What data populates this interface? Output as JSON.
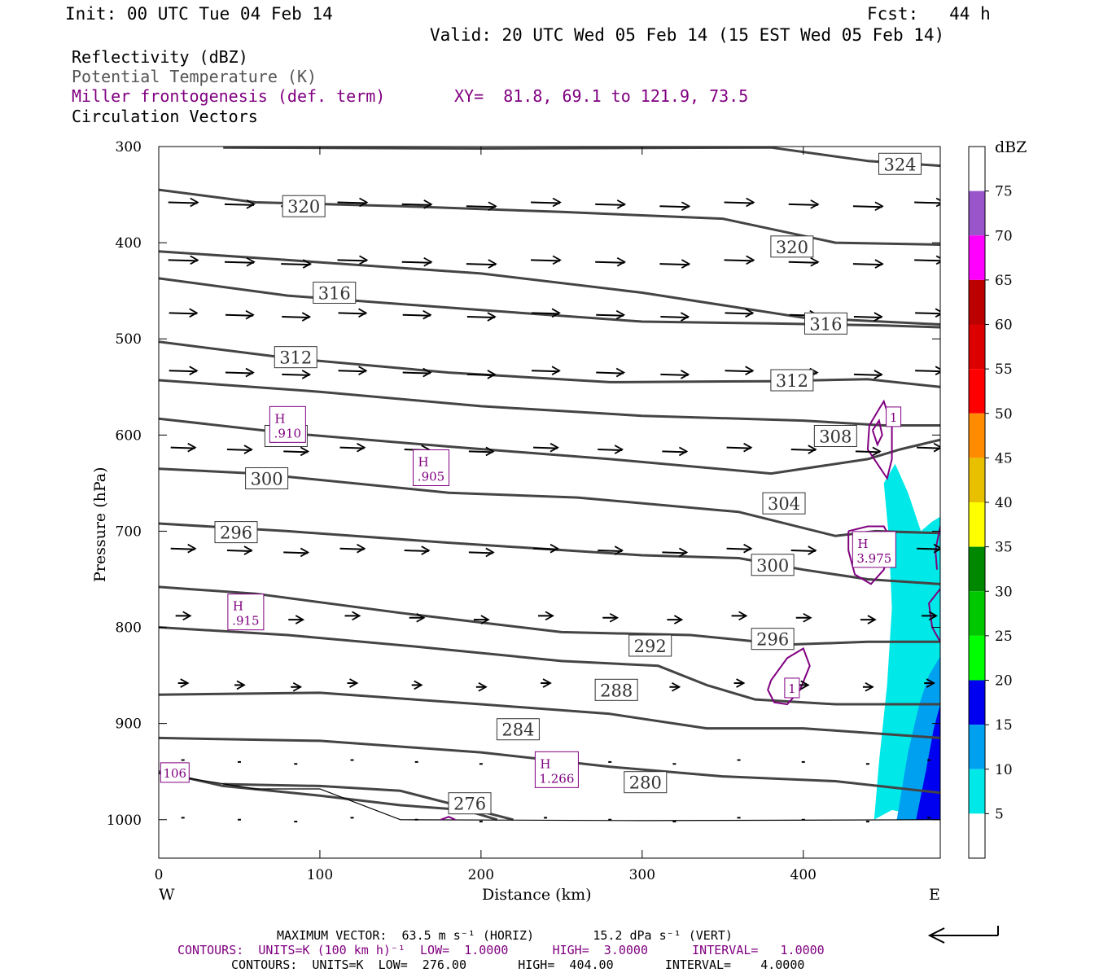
{
  "header": {
    "init": "Init: 00 UTC Tue 04 Feb 14",
    "fcst": "Fcst:   44 h",
    "valid": "Valid: 20 UTC Wed 05 Feb 14 (15 EST Wed 05 Feb 14)"
  },
  "fields": {
    "reflectivity": "Reflectivity (dBZ)",
    "theta": "Potential Temperature (K)",
    "miller": "Miller frontogenesis (def. term)",
    "xy": "XY=  81.8, 69.1 to 121.9, 73.5",
    "vectors": "Circulation Vectors"
  },
  "footer": {
    "max_vector": "MAXIMUM VECTOR:  63.5 m s⁻¹ (HORIZ)        15.2 dPa s⁻¹ (VERT)",
    "contours_purple": "CONTOURS:  UNITS=K (100 km h)⁻¹  LOW=  1.0000      HIGH=  3.0000      INTERVAL=   1.0000",
    "contours_black": "CONTOURS:  UNITS=K  LOW=  276.00       HIGH=  404.00       INTERVAL=    4.0000"
  },
  "chart_data": {
    "type": "contour",
    "xlabel": "Distance (km)",
    "ylabel": "Pressure (hPa)",
    "x_left_label": "W",
    "x_right_label": "E",
    "xlim": [
      0,
      485
    ],
    "ylim": [
      1040,
      300
    ],
    "xticks": [
      0,
      100,
      200,
      300,
      400
    ],
    "yticks": [
      300,
      400,
      500,
      600,
      700,
      800,
      900,
      1000
    ],
    "colorbar": {
      "title": "dBZ",
      "ticks": [
        5,
        10,
        15,
        20,
        25,
        30,
        35,
        40,
        45,
        50,
        55,
        60,
        65,
        70,
        75
      ],
      "colors": [
        "#00e8e8",
        "#00a0f0",
        "#0000f0",
        "#00ff00",
        "#00c800",
        "#008800",
        "#ffff00",
        "#e8c000",
        "#ff8c00",
        "#ff0000",
        "#dc0000",
        "#bc0000",
        "#ff00ff",
        "#9955c9"
      ]
    },
    "theta_contours": [
      {
        "level": 324,
        "label": "324",
        "label_at": [
          460,
          318
        ]
      },
      {
        "level": 320,
        "label": "320",
        "label_at": [
          90,
          362
        ]
      },
      {
        "level": 320,
        "label": "320",
        "label_at": [
          393,
          404
        ]
      },
      {
        "level": 316,
        "label": "316",
        "label_at": [
          109,
          452
        ]
      },
      {
        "level": 316,
        "label": "316",
        "label_at": [
          414,
          484
        ]
      },
      {
        "level": 312,
        "label": "312",
        "label_at": [
          85,
          519
        ]
      },
      {
        "level": 312,
        "label": "312",
        "label_at": [
          393,
          543
        ]
      },
      {
        "level": 308,
        "label": "308",
        "label_at": [
          420,
          601
        ]
      },
      {
        "level": 304,
        "label": "304",
        "label_at": [
          79,
          601
        ]
      },
      {
        "level": 304,
        "label": "304",
        "label_at": [
          388,
          671
        ]
      },
      {
        "level": 300,
        "label": "300",
        "label_at": [
          67,
          645
        ]
      },
      {
        "level": 300,
        "label": "300",
        "label_at": [
          381,
          735
        ]
      },
      {
        "level": 296,
        "label": "296",
        "label_at": [
          48,
          701
        ]
      },
      {
        "level": 296,
        "label": "296",
        "label_at": [
          381,
          812
        ]
      },
      {
        "level": 292,
        "label": "292",
        "label_at": [
          305,
          819
        ]
      },
      {
        "level": 288,
        "label": "288",
        "label_at": [
          284,
          865
        ]
      },
      {
        "level": 284,
        "label": "284",
        "label_at": [
          223,
          906
        ]
      },
      {
        "level": 280,
        "label": "280",
        "label_at": [
          302,
          961
        ]
      },
      {
        "level": 276,
        "label": "276",
        "label_at": [
          193,
          983
        ]
      }
    ],
    "frontogenesis_labels": [
      {
        "kind": "H",
        "value": ".910",
        "at": [
          80,
          589
        ]
      },
      {
        "kind": "H",
        "value": ".905",
        "at": [
          169,
          634
        ]
      },
      {
        "kind": "H",
        "value": "3.975",
        "at": [
          444,
          719
        ]
      },
      {
        "kind": "H",
        "value": ".915",
        "at": [
          54,
          784
        ]
      },
      {
        "kind": "H",
        "value": "1.266",
        "at": [
          247,
          948
        ]
      },
      {
        "kind": "",
        "value": "106",
        "at": [
          10,
          951
        ]
      },
      {
        "kind": "",
        "value": "1",
        "at": [
          456,
          581
        ]
      },
      {
        "kind": "",
        "value": "1",
        "at": [
          393,
          863
        ]
      }
    ]
  }
}
